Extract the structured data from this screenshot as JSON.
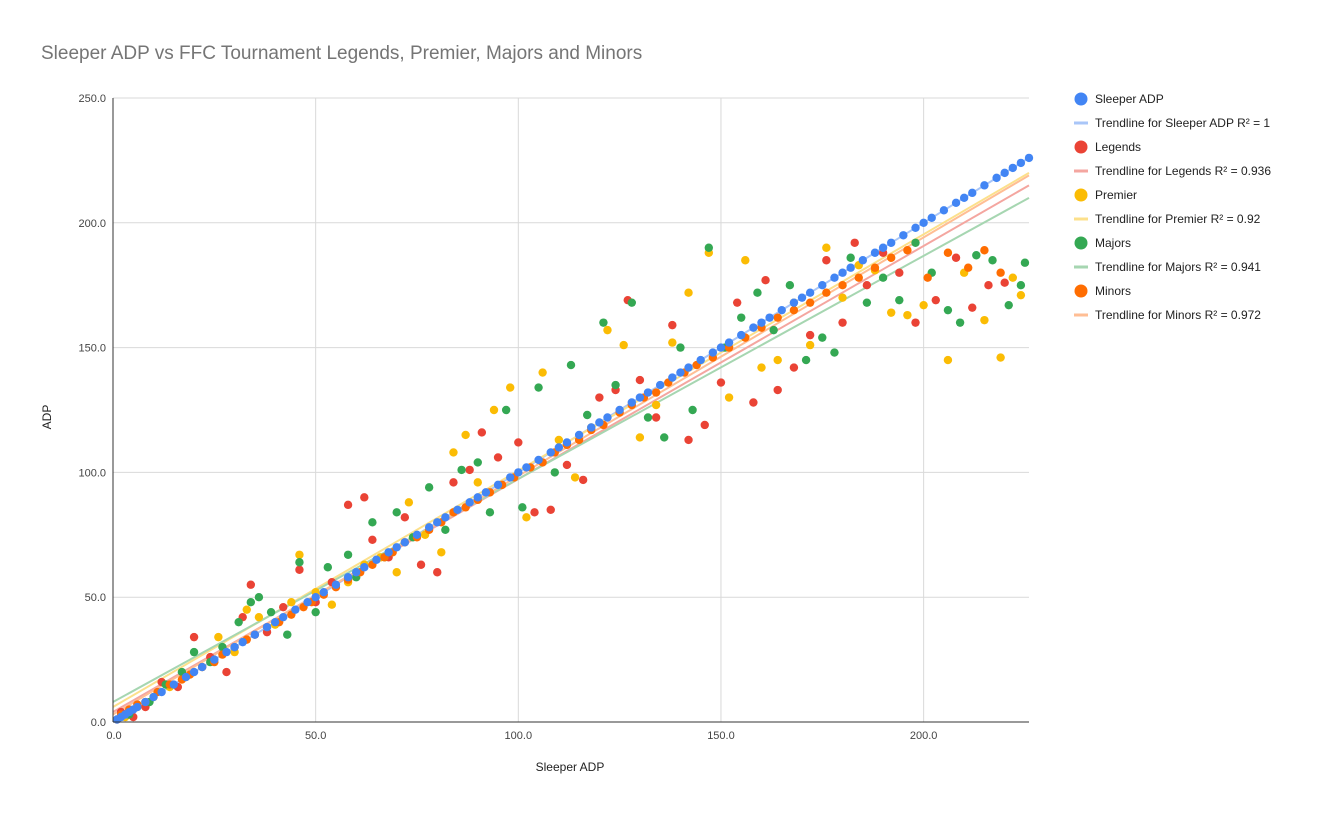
{
  "chart_data": {
    "type": "scatter",
    "title": "Sleeper ADP vs FFC Tournament Legends, Premier, Majors and Minors",
    "xlabel": "Sleeper ADP",
    "ylabel": "ADP",
    "xlim": [
      0,
      226
    ],
    "ylim": [
      0,
      250
    ],
    "xticks": [
      0,
      50,
      100,
      150,
      200
    ],
    "xtick_labels": [
      "0.0",
      "50.0",
      "100.0",
      "150.0",
      "200.0"
    ],
    "yticks": [
      0,
      50,
      100,
      150,
      200,
      250
    ],
    "ytick_labels": [
      "0.0",
      "50.0",
      "100.0",
      "150.0",
      "200.0",
      "250.0"
    ],
    "grid": true,
    "legend_position": "right",
    "legend": [
      {
        "label": "Sleeper ADP",
        "kind": "marker",
        "color": "#4285F4"
      },
      {
        "label": "Trendline for Sleeper ADP R² = 1",
        "kind": "line",
        "color": "#A9C6F8"
      },
      {
        "label": "Legends",
        "kind": "marker",
        "color": "#EA4335"
      },
      {
        "label": "Trendline for Legends R² = 0.936",
        "kind": "line",
        "color": "#F4A6A0"
      },
      {
        "label": "Premier",
        "kind": "marker",
        "color": "#FBBC04"
      },
      {
        "label": "Trendline for Premier R² = 0.92",
        "kind": "line",
        "color": "#FCE08B"
      },
      {
        "label": "Majors",
        "kind": "marker",
        "color": "#34A853"
      },
      {
        "label": "Trendline for Majors R² = 0.941",
        "kind": "line",
        "color": "#A6D6B1"
      },
      {
        "label": "Minors",
        "kind": "marker",
        "color": "#FF6D01"
      },
      {
        "label": "Trendline for Minors R² = 0.972",
        "kind": "line",
        "color": "#FFBE94"
      }
    ],
    "trendlines": [
      {
        "series": "Sleeper ADP",
        "x": [
          0,
          226
        ],
        "y": [
          0,
          226
        ],
        "color": "#A9C6F8"
      },
      {
        "series": "Legends",
        "x": [
          0,
          226
        ],
        "y": [
          4,
          215
        ],
        "color": "#F4A6A0"
      },
      {
        "series": "Premier",
        "x": [
          0,
          226
        ],
        "y": [
          6,
          220
        ],
        "color": "#FCE08B"
      },
      {
        "series": "Majors",
        "x": [
          0,
          226
        ],
        "y": [
          8,
          210
        ],
        "color": "#A6D6B1"
      },
      {
        "series": "Minors",
        "x": [
          0,
          226
        ],
        "y": [
          3,
          219
        ],
        "color": "#FFBE94"
      }
    ],
    "series": [
      {
        "name": "Sleeper ADP",
        "color": "#4285F4",
        "x": [
          1,
          2,
          3,
          4,
          5,
          6,
          8,
          10,
          12,
          15,
          18,
          20,
          22,
          25,
          28,
          30,
          32,
          35,
          38,
          40,
          42,
          45,
          48,
          50,
          52,
          55,
          58,
          60,
          62,
          65,
          68,
          70,
          72,
          75,
          78,
          80,
          82,
          85,
          88,
          90,
          92,
          95,
          98,
          100,
          102,
          105,
          108,
          110,
          112,
          115,
          118,
          120,
          122,
          125,
          128,
          130,
          132,
          135,
          138,
          140,
          142,
          145,
          148,
          150,
          152,
          155,
          158,
          160,
          162,
          165,
          168,
          170,
          172,
          175,
          178,
          180,
          182,
          185,
          188,
          190,
          192,
          195,
          198,
          200,
          202,
          205,
          208,
          210,
          212,
          215,
          218,
          220,
          222,
          224,
          226
        ],
        "y": [
          1,
          2,
          3,
          4,
          5,
          6,
          8,
          10,
          12,
          15,
          18,
          20,
          22,
          25,
          28,
          30,
          32,
          35,
          38,
          40,
          42,
          45,
          48,
          50,
          52,
          55,
          58,
          60,
          62,
          65,
          68,
          70,
          72,
          75,
          78,
          80,
          82,
          85,
          88,
          90,
          92,
          95,
          98,
          100,
          102,
          105,
          108,
          110,
          112,
          115,
          118,
          120,
          122,
          125,
          128,
          130,
          132,
          135,
          138,
          140,
          142,
          145,
          148,
          150,
          152,
          155,
          158,
          160,
          162,
          165,
          168,
          170,
          172,
          175,
          178,
          180,
          182,
          185,
          188,
          190,
          192,
          195,
          198,
          200,
          202,
          205,
          208,
          210,
          212,
          215,
          218,
          220,
          222,
          224,
          226
        ]
      },
      {
        "name": "Legends",
        "color": "#EA4335",
        "x": [
          2,
          5,
          8,
          12,
          16,
          20,
          24,
          28,
          32,
          34,
          38,
          42,
          46,
          50,
          54,
          58,
          62,
          64,
          68,
          72,
          76,
          80,
          84,
          88,
          91,
          95,
          100,
          104,
          108,
          112,
          116,
          120,
          124,
          127,
          130,
          134,
          138,
          142,
          146,
          150,
          154,
          158,
          161,
          164,
          168,
          172,
          176,
          180,
          183,
          186,
          190,
          194,
          198,
          203,
          208,
          212,
          216,
          220
        ],
        "y": [
          4,
          2,
          6,
          16,
          14,
          34,
          26,
          20,
          42,
          55,
          36,
          46,
          61,
          48,
          56,
          87,
          90,
          73,
          66,
          82,
          63,
          60,
          96,
          101,
          116,
          106,
          112,
          84,
          85,
          103,
          97,
          130,
          133,
          169,
          137,
          122,
          159,
          113,
          119,
          136,
          168,
          128,
          177,
          133,
          142,
          155,
          185,
          160,
          192,
          175,
          188,
          180,
          160,
          169,
          186,
          166,
          175,
          176
        ]
      },
      {
        "name": "Premier",
        "color": "#FBBC04",
        "x": [
          3,
          6,
          10,
          14,
          18,
          22,
          26,
          30,
          33,
          36,
          40,
          44,
          46,
          50,
          54,
          58,
          62,
          66,
          70,
          73,
          77,
          81,
          84,
          87,
          90,
          94,
          98,
          102,
          106,
          110,
          114,
          118,
          122,
          126,
          130,
          134,
          138,
          142,
          147,
          152,
          156,
          160,
          164,
          168,
          172,
          176,
          180,
          184,
          188,
          192,
          196,
          200,
          206,
          210,
          215,
          219,
          222,
          224
        ],
        "y": [
          2,
          6,
          10,
          14,
          18,
          22,
          34,
          28,
          45,
          42,
          39,
          48,
          67,
          52,
          47,
          56,
          63,
          66,
          60,
          88,
          75,
          68,
          108,
          115,
          96,
          125,
          134,
          82,
          140,
          113,
          98,
          118,
          157,
          151,
          114,
          127,
          152,
          172,
          188,
          130,
          185,
          142,
          145,
          168,
          151,
          190,
          170,
          183,
          181,
          164,
          163,
          167,
          145,
          180,
          161,
          146,
          178,
          171
        ]
      },
      {
        "name": "Majors",
        "color": "#34A853",
        "x": [
          4,
          9,
          13,
          17,
          20,
          24,
          27,
          31,
          34,
          36,
          39,
          43,
          46,
          50,
          53,
          58,
          60,
          64,
          67,
          70,
          74,
          78,
          82,
          86,
          90,
          93,
          97,
          101,
          105,
          109,
          113,
          117,
          121,
          124,
          128,
          132,
          136,
          140,
          143,
          147,
          151,
          155,
          159,
          163,
          167,
          171,
          175,
          178,
          182,
          186,
          190,
          194,
          198,
          202,
          206,
          209,
          213,
          217,
          221,
          224,
          225
        ],
        "y": [
          3,
          8,
          15,
          20,
          28,
          24,
          30,
          40,
          48,
          50,
          44,
          35,
          64,
          44,
          62,
          67,
          58,
          80,
          66,
          84,
          74,
          94,
          77,
          101,
          104,
          84,
          125,
          86,
          134,
          100,
          143,
          123,
          160,
          135,
          168,
          122,
          114,
          150,
          125,
          190,
          150,
          162,
          172,
          157,
          175,
          145,
          154,
          148,
          186,
          168,
          178,
          169,
          192,
          180,
          165,
          160,
          187,
          185,
          167,
          175,
          184
        ]
      },
      {
        "name": "Minors",
        "color": "#FF6D01",
        "x": [
          1,
          2,
          4,
          6,
          8,
          11,
          14,
          17,
          19,
          22,
          25,
          27,
          30,
          33,
          35,
          38,
          41,
          44,
          47,
          49,
          52,
          55,
          58,
          61,
          64,
          67,
          69,
          72,
          75,
          78,
          81,
          84,
          87,
          90,
          93,
          96,
          99,
          103,
          106,
          109,
          112,
          115,
          118,
          121,
          125,
          128,
          131,
          134,
          137,
          141,
          144,
          148,
          152,
          156,
          160,
          164,
          168,
          172,
          176,
          180,
          184,
          188,
          192,
          196,
          201,
          206,
          211,
          215,
          219
        ],
        "y": [
          1,
          3,
          5,
          7,
          8,
          12,
          15,
          17,
          19,
          22,
          24,
          27,
          30,
          33,
          35,
          38,
          40,
          43,
          46,
          48,
          51,
          54,
          57,
          60,
          63,
          66,
          68,
          72,
          74,
          77,
          80,
          84,
          86,
          89,
          92,
          95,
          98,
          102,
          104,
          108,
          111,
          113,
          117,
          119,
          124,
          127,
          130,
          132,
          136,
          140,
          143,
          146,
          150,
          154,
          158,
          162,
          165,
          168,
          172,
          175,
          178,
          182,
          186,
          189,
          178,
          188,
          182,
          189,
          180
        ]
      }
    ]
  }
}
